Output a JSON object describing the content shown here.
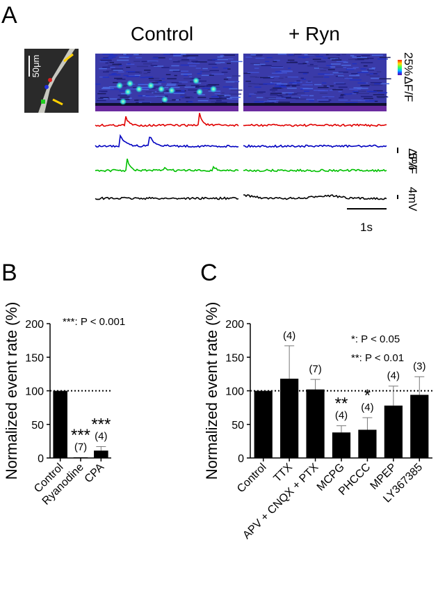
{
  "panel_a": {
    "label": "A",
    "title_left": "Control",
    "title_right": "+ Ryn",
    "scale_image": "50μm",
    "colorbar_top": "25%",
    "colorbar_unit": "ΔF/F",
    "trace_scale_top": "5%",
    "trace_scale_unit": "ΔF/F",
    "voltage_scale": "4mV",
    "time_scale": "1s"
  },
  "chart_data": [
    {
      "type": "bar",
      "panel_label": "B",
      "y_label": "Normalized event rate (%)",
      "categories": [
        "Control",
        "Ryanodine",
        "CPA"
      ],
      "values": [
        100,
        1,
        11
      ],
      "errors": [
        null,
        null,
        6
      ],
      "n_labels": [
        null,
        "(7)",
        "(4)"
      ],
      "stars": [
        null,
        "***",
        "***"
      ],
      "significance": [
        "***: P < 0.001"
      ],
      "reference_line": 100,
      "color": "#000000",
      "ylim": [
        0,
        200
      ],
      "yticks": [
        0,
        50,
        100,
        150,
        200
      ]
    },
    {
      "type": "bar",
      "panel_label": "C",
      "y_label": "Normalized event rate (%)",
      "categories": [
        "Control",
        "TTX",
        "APV + CNQX + PTX",
        "MCPG",
        "PHCCC",
        "MPEP",
        "LY367385"
      ],
      "values": [
        100,
        118,
        102,
        38,
        42,
        78,
        94
      ],
      "errors": [
        null,
        49,
        15,
        10,
        18,
        29,
        27
      ],
      "n_labels": [
        null,
        "(4)",
        "(7)",
        "(4)",
        "(4)",
        "(4)",
        "(3)"
      ],
      "stars": [
        null,
        null,
        null,
        "**",
        "*",
        null,
        null
      ],
      "significance": [
        "*: P < 0.05",
        "**: P < 0.01"
      ],
      "reference_line": 100,
      "color": "#000000",
      "ylim": [
        0,
        200
      ],
      "yticks": [
        0,
        50,
        100,
        150,
        200
      ]
    }
  ]
}
